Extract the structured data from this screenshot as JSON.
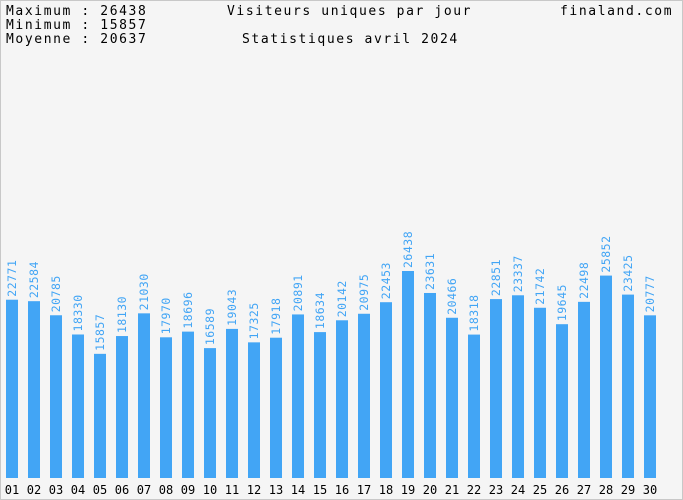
{
  "header": {
    "maximum": "Maximum : 26438",
    "minimum": "Minimum : 15857",
    "average": "Moyenne : 20637",
    "title": "Visiteurs uniques par jour",
    "subtitle": "Statistiques avril 2024",
    "site": "finaland.com"
  },
  "colors": {
    "bar": "#42a5f5",
    "value_label": "#42a5f5",
    "background": "#f5f5f5",
    "border": "#c8c8c8",
    "text": "#000000"
  },
  "chart_data": {
    "type": "bar",
    "title": "Visiteurs uniques par jour",
    "subtitle": "Statistiques avril 2024",
    "xlabel": "",
    "ylabel": "",
    "ylim": [
      0,
      26438
    ],
    "grid": false,
    "legend": "none",
    "categories": [
      "01",
      "02",
      "03",
      "04",
      "05",
      "06",
      "07",
      "08",
      "09",
      "10",
      "11",
      "12",
      "13",
      "14",
      "15",
      "16",
      "17",
      "18",
      "19",
      "20",
      "21",
      "22",
      "23",
      "24",
      "25",
      "26",
      "27",
      "28",
      "29",
      "30"
    ],
    "values": [
      22771,
      22584,
      20785,
      18330,
      15857,
      18130,
      21030,
      17970,
      18696,
      16589,
      19043,
      17325,
      17918,
      20891,
      18634,
      20142,
      20975,
      22453,
      26438,
      23631,
      20466,
      18318,
      22851,
      23337,
      21742,
      19645,
      22498,
      25852,
      23425,
      20777
    ]
  }
}
